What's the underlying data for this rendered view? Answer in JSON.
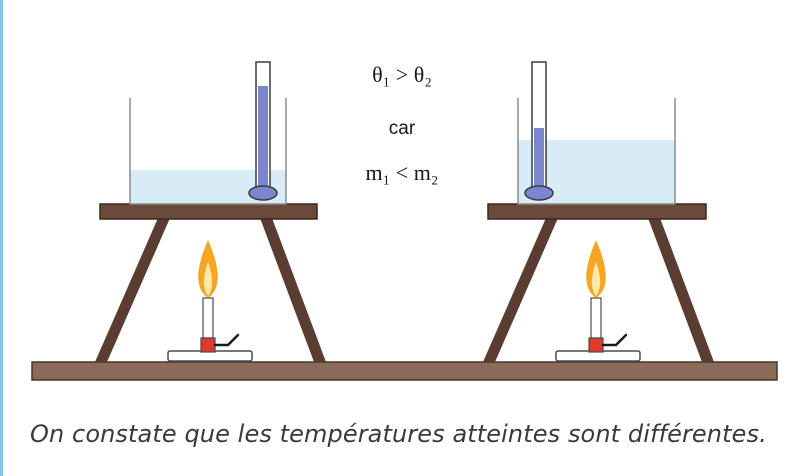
{
  "formula": {
    "line1": "θ₁ > θ₂",
    "line2": "car",
    "line3": "m₁ < m₂"
  },
  "caption": "On constate que les températures atteintes sont différentes.",
  "colors": {
    "wood": "#8a6a58",
    "tripod": "#5a3d30",
    "water": "#d7ecf6",
    "thermometer_liquid": "#7b86cf",
    "flame_outer": "#f5a623",
    "flame_inner": "#ffe9a8",
    "burner_red": "#e03a2a",
    "accent_rule": "#7fc6e6"
  }
}
